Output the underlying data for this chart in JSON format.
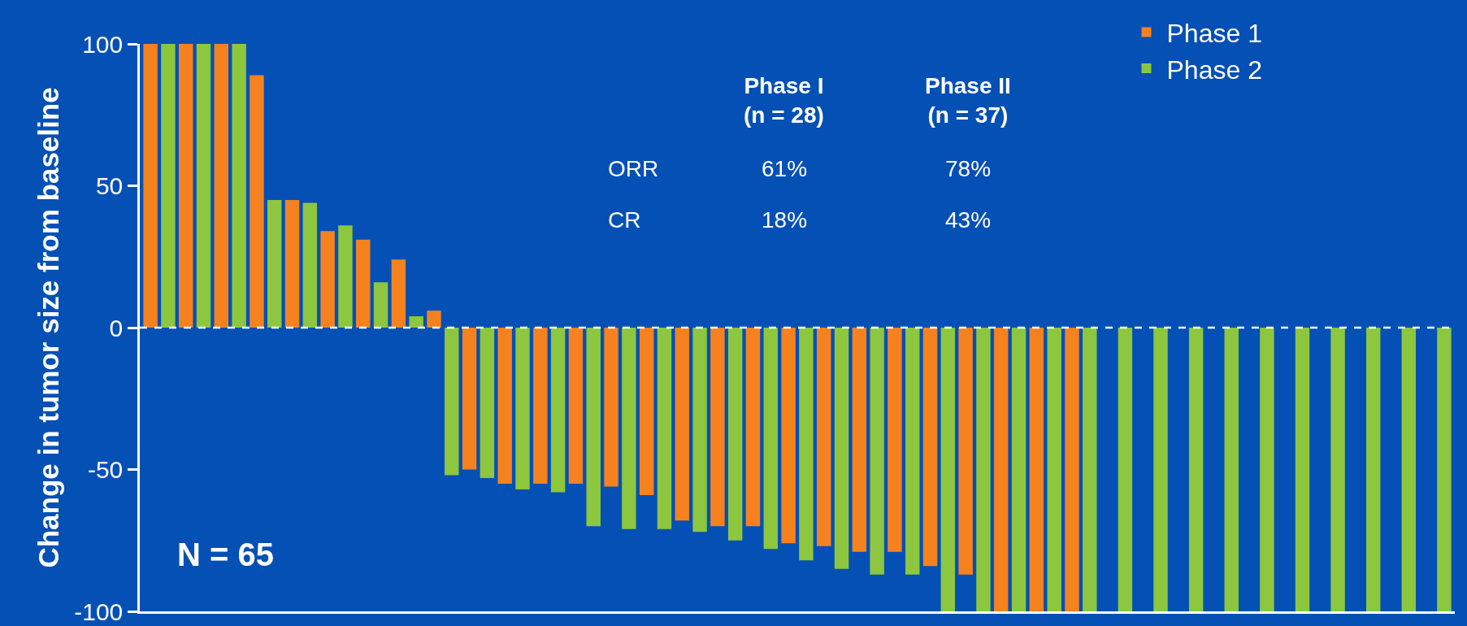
{
  "chart_data": {
    "type": "bar",
    "ylabel": "Change in tumor size from baseline",
    "categories": [
      null,
      null,
      null,
      null,
      null,
      null,
      null,
      null,
      null,
      null,
      null,
      null,
      null,
      null,
      null,
      null,
      null,
      null,
      null,
      null,
      null,
      null,
      null,
      null,
      null,
      null,
      null,
      null,
      null,
      null,
      null,
      null,
      null,
      null,
      null,
      null,
      null,
      null,
      null,
      null,
      null,
      null,
      null,
      null,
      null,
      null,
      null,
      null,
      null,
      null,
      null,
      null,
      null,
      null,
      null,
      null,
      null,
      null,
      null,
      null,
      null,
      null,
      null,
      null,
      null,
      null,
      null,
      null,
      null,
      null,
      null,
      null,
      null,
      null
    ],
    "series": [
      {
        "name": "Phase 1",
        "color": "#f5821f",
        "values": [
          100,
          null,
          100,
          null,
          100,
          null,
          89,
          null,
          45,
          null,
          34,
          null,
          31,
          null,
          24,
          null,
          6,
          null,
          -50,
          null,
          -55,
          null,
          -55,
          null,
          -55,
          null,
          -56,
          null,
          -59,
          null,
          -68,
          null,
          -70,
          null,
          -70,
          null,
          -76,
          null,
          -77,
          null,
          -79,
          null,
          -79,
          null,
          -84,
          null,
          -87,
          null,
          -100,
          null,
          -100,
          null,
          -100,
          null,
          null,
          null,
          null,
          null,
          null,
          null,
          null,
          null,
          null,
          null,
          null,
          null,
          null,
          null,
          null,
          null,
          null,
          null,
          null,
          null
        ]
      },
      {
        "name": "Phase 2",
        "color": "#8dc63f",
        "values": [
          null,
          100,
          null,
          100,
          null,
          100,
          null,
          45,
          null,
          44,
          null,
          36,
          null,
          16,
          null,
          4,
          null,
          -52,
          null,
          -53,
          null,
          -57,
          null,
          -58,
          null,
          -70,
          null,
          -71,
          null,
          -71,
          null,
          -72,
          null,
          -75,
          null,
          -78,
          null,
          -82,
          null,
          -85,
          null,
          -87,
          null,
          -87,
          null,
          -100,
          null,
          -100,
          null,
          -100,
          null,
          -100,
          null,
          -100,
          null,
          -100,
          null,
          -100,
          null,
          -100,
          null,
          -100,
          null,
          -100,
          null,
          -100,
          null,
          -100,
          null,
          -100,
          null,
          -100,
          null,
          -100
        ]
      }
    ],
    "ylim": [
      -100,
      100
    ],
    "yticks": [
      -100,
      -50,
      0,
      50,
      100
    ],
    "ref_lines": [
      {
        "axis": "y",
        "value": 0,
        "color": "#ffffff",
        "line_style": "dashed"
      }
    ],
    "grid": false,
    "legend": "top right",
    "annotations": [
      "Phase I\n(n = 28)",
      "Phase II\n(n = 37)",
      "ORR",
      "61%",
      "78%",
      "CR",
      "18%",
      "43%",
      "N = 65"
    ]
  }
}
